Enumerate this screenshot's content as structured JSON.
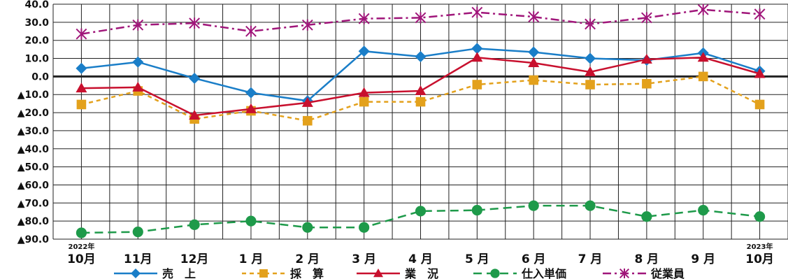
{
  "chart_data": {
    "type": "line",
    "categories": [
      "10月",
      "11月",
      "12月",
      "1月",
      "2月",
      "3月",
      "4月",
      "5月",
      "6月",
      "7月",
      "8月",
      "9月",
      "10月"
    ],
    "category_labels": [
      "10月",
      "11月",
      "12月",
      "1 月",
      "2 月",
      "3 月",
      "4 月",
      "5 月",
      "6 月",
      "7 月",
      "8 月",
      "9 月",
      "10月"
    ],
    "year_labels": [
      {
        "index": 0,
        "text": "2022年"
      },
      {
        "index": 12,
        "text": "2023年"
      }
    ],
    "ylim": [
      -90,
      40
    ],
    "yticks": [
      40,
      30,
      20,
      10,
      0,
      -10,
      -20,
      -30,
      -40,
      -50,
      -60,
      -70,
      -80,
      -90
    ],
    "ytick_labels": [
      "40.0",
      "30.0",
      "20.0",
      "10.0",
      "0.0",
      "▲10.0",
      "▲20.0",
      "▲30.0",
      "▲40.0",
      "▲50.0",
      "▲60.0",
      "▲70.0",
      "▲80.0",
      "▲90.0"
    ],
    "grid": true,
    "legend_position": "bottom",
    "series": [
      {
        "name": "売　上",
        "color": "#1a7ec8",
        "dash": "solid",
        "marker": "diamond",
        "values": [
          4.5,
          8.0,
          -1.0,
          -9.0,
          -13.5,
          14.0,
          11.0,
          15.5,
          13.5,
          10.0,
          9.0,
          13.0,
          3.0
        ]
      },
      {
        "name": "採　算",
        "color": "#e3a11c",
        "dash": "dash",
        "marker": "square",
        "values": [
          -15.5,
          -8.0,
          -23.5,
          -19.0,
          -24.5,
          -14.0,
          -14.0,
          -4.5,
          -2.0,
          -4.5,
          -4.0,
          0.0,
          -15.5
        ]
      },
      {
        "name": "業　況",
        "color": "#c8102e",
        "dash": "solid",
        "marker": "triangle",
        "values": [
          -6.5,
          -6.0,
          -21.5,
          -18.0,
          -14.5,
          -9.0,
          -8.0,
          10.5,
          7.5,
          2.5,
          9.5,
          10.5,
          1.5
        ]
      },
      {
        "name": "仕入単価",
        "color": "#1e9a4a",
        "dash": "longdash",
        "marker": "circle",
        "values": [
          -86.5,
          -86.0,
          -82.0,
          -80.0,
          -83.5,
          -83.5,
          -74.5,
          -74.0,
          -71.5,
          -71.5,
          -77.5,
          -74.0,
          -77.5
        ]
      },
      {
        "name": "従業員",
        "color": "#a0167a",
        "dash": "dashdot",
        "marker": "asterisk",
        "values": [
          23.5,
          28.5,
          29.5,
          25.0,
          28.5,
          32.0,
          32.5,
          35.5,
          33.0,
          29.0,
          32.5,
          37.0,
          34.5
        ]
      }
    ]
  }
}
